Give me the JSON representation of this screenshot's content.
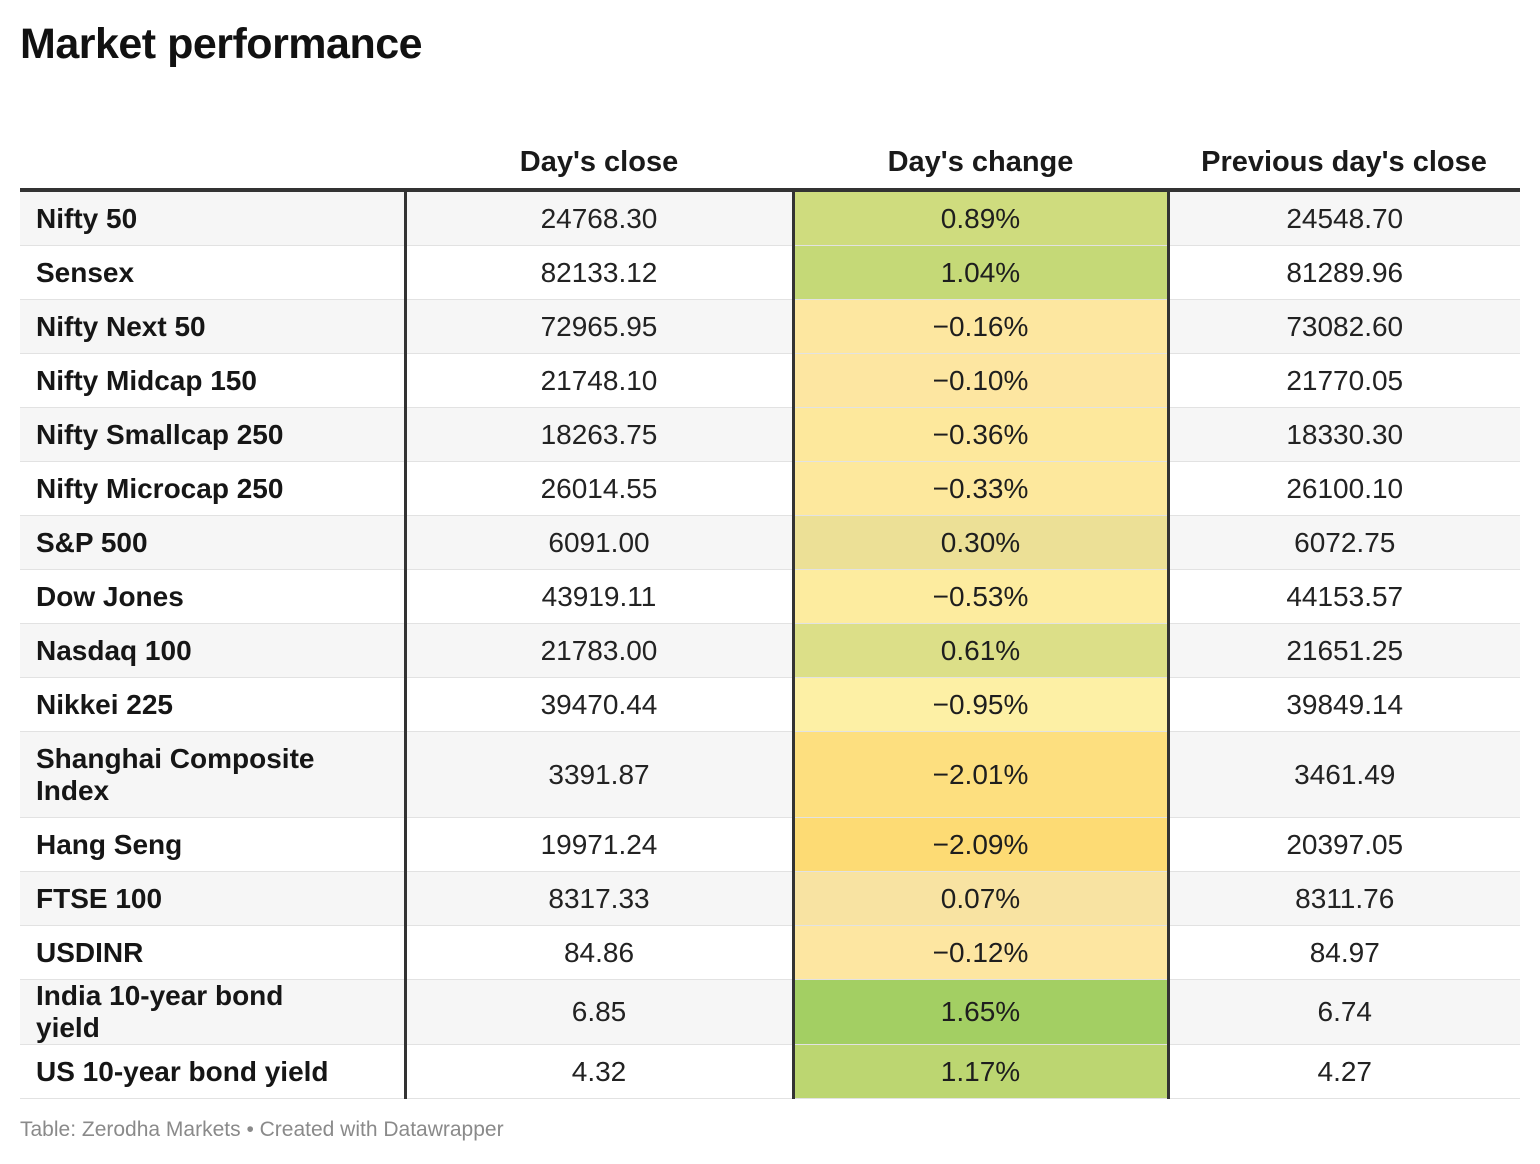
{
  "title": "Market performance",
  "footer": {
    "source": "Table: Zerodha Markets",
    "separator": " • ",
    "credit": "Created with Datawrapper"
  },
  "colors": {
    "strong_positive": "#a3cf63",
    "mild_positive": "#cfdc7e",
    "neutral_positive": "#ede293",
    "slight_negative": "#fde79f",
    "strong_negative": "#fddb74"
  },
  "chart_data": {
    "type": "table",
    "title": "Market performance",
    "columns": [
      "",
      "Day's close",
      "Day's change",
      "Previous day's close"
    ],
    "rows": [
      {
        "name": "Nifty 50",
        "close": "24768.30",
        "change": "0.89%",
        "prev": "24548.70",
        "change_value": 0.89,
        "color": "#cfdc7e"
      },
      {
        "name": "Sensex",
        "close": "82133.12",
        "change": "1.04%",
        "prev": "81289.96",
        "change_value": 1.04,
        "color": "#c5d977"
      },
      {
        "name": "Nifty Next 50",
        "close": "72965.95",
        "change": "−0.16%",
        "prev": "73082.60",
        "change_value": -0.16,
        "color": "#fde7a0"
      },
      {
        "name": "Nifty Midcap 150",
        "close": "21748.10",
        "change": "−0.10%",
        "prev": "21770.05",
        "change_value": -0.1,
        "color": "#fde6a1"
      },
      {
        "name": "Nifty Smallcap 250",
        "close": "18263.75",
        "change": "−0.36%",
        "prev": "18330.30",
        "change_value": -0.36,
        "color": "#fde89c"
      },
      {
        "name": "Nifty Microcap 250",
        "close": "26014.55",
        "change": "−0.33%",
        "prev": "26100.10",
        "change_value": -0.33,
        "color": "#fde89d"
      },
      {
        "name": "S&P 500",
        "close": "6091.00",
        "change": "0.30%",
        "prev": "6072.75",
        "change_value": 0.3,
        "color": "#ece096"
      },
      {
        "name": "Dow Jones",
        "close": "43919.11",
        "change": "−0.53%",
        "prev": "44153.57",
        "change_value": -0.53,
        "color": "#fdec9f"
      },
      {
        "name": "Nasdaq 100",
        "close": "21783.00",
        "change": "0.61%",
        "prev": "21651.25",
        "change_value": 0.61,
        "color": "#dcdf88"
      },
      {
        "name": "Nikkei 225",
        "close": "39470.44",
        "change": "−0.95%",
        "prev": "39849.14",
        "change_value": -0.95,
        "color": "#fdf0a5"
      },
      {
        "name": "Shanghai Composite Index",
        "close": "3391.87",
        "change": "−2.01%",
        "prev": "3461.49",
        "change_value": -2.01,
        "color": "#fddf7f",
        "tall": true
      },
      {
        "name": "Hang Seng",
        "close": "19971.24",
        "change": "−2.09%",
        "prev": "20397.05",
        "change_value": -2.09,
        "color": "#fddb74"
      },
      {
        "name": "FTSE 100",
        "close": "8317.33",
        "change": "0.07%",
        "prev": "8311.76",
        "change_value": 0.07,
        "color": "#f8e3a2"
      },
      {
        "name": "USDINR",
        "close": "84.86",
        "change": "−0.12%",
        "prev": "84.97",
        "change_value": -0.12,
        "color": "#fde6a1"
      },
      {
        "name": "India 10-year bond yield",
        "close": "6.85",
        "change": "1.65%",
        "prev": "6.74",
        "change_value": 1.65,
        "color": "#a3cf63"
      },
      {
        "name": "US 10-year bond yield",
        "close": "4.32",
        "change": "1.17%",
        "prev": "4.27",
        "change_value": 1.17,
        "color": "#bcd671"
      }
    ]
  }
}
